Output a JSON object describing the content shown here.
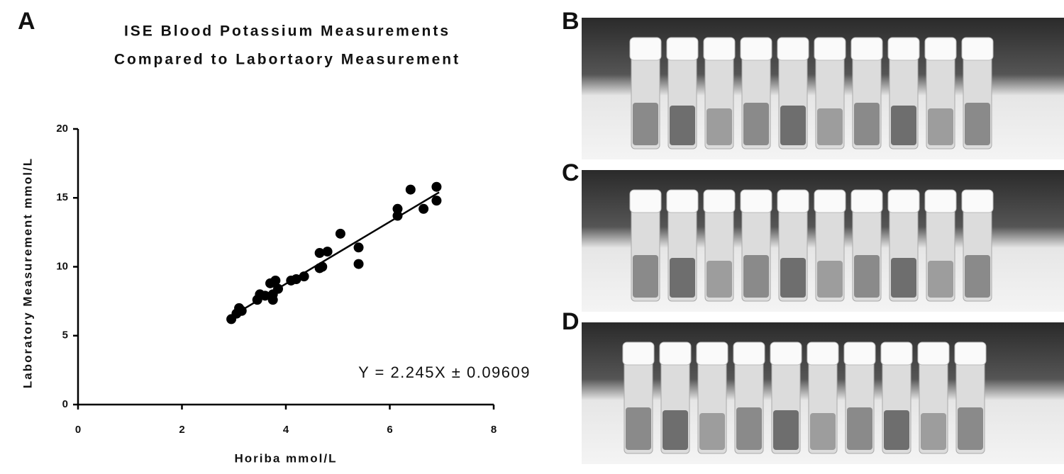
{
  "panels": {
    "a": "A",
    "b": "B",
    "c": "C",
    "d": "D"
  },
  "chart_data": {
    "type": "scatter",
    "title": [
      "ISE Blood Potassium Measurements",
      "Compared to Labortaory Measurement"
    ],
    "x_label": "Horiba mmol/L",
    "y_label": "Laboratory Measurement mmol/L",
    "annotation": "Y = 2.245X ± 0.09609",
    "color": "#000000",
    "x": [
      2.95,
      3.05,
      3.1,
      3.15,
      3.45,
      3.5,
      3.6,
      3.7,
      3.75,
      3.8,
      3.75,
      3.85,
      4.1,
      4.2,
      4.35,
      4.65,
      4.65,
      4.7,
      4.8,
      5.05,
      5.4,
      5.4,
      6.15,
      6.15,
      6.4,
      6.65,
      6.9,
      6.9
    ],
    "values": [
      6.2,
      6.6,
      7.0,
      6.8,
      7.6,
      8.0,
      7.9,
      8.8,
      7.6,
      9.0,
      8.0,
      8.4,
      9.0,
      9.1,
      9.3,
      9.9,
      11.0,
      10.0,
      11.1,
      12.4,
      11.4,
      10.2,
      13.7,
      14.2,
      15.6,
      14.2,
      15.8,
      14.8
    ],
    "fit_line": {
      "x": [
        2.95,
        6.95
      ],
      "values": [
        6.4,
        15.4
      ]
    },
    "xlim": [
      0,
      8
    ],
    "ylim": [
      0,
      20
    ],
    "xticks": [
      0,
      2,
      4,
      6,
      8
    ],
    "yticks": [
      0,
      5,
      10,
      15,
      20
    ]
  }
}
